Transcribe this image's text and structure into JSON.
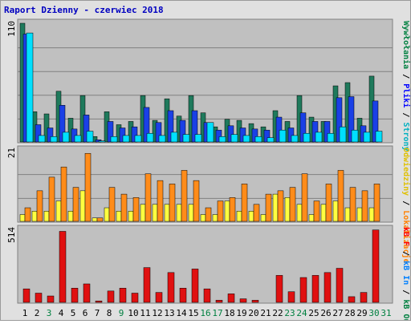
{
  "chart_data": [
    {
      "type": "bar",
      "title": "Raport Dzienny -  czerwiec 2018",
      "categories": [
        "1",
        "2",
        "3",
        "4",
        "5",
        "6",
        "7",
        "8",
        "9",
        "10",
        "11",
        "12",
        "13",
        "14",
        "15",
        "16",
        "17",
        "18",
        "19",
        "20",
        "21",
        "22",
        "23",
        "24",
        "25",
        "26",
        "27",
        "28",
        "29",
        "30",
        "31"
      ],
      "day_label_colors": [
        "#000000",
        "#000000",
        "#008040",
        "#000000",
        "#000000",
        "#000000",
        "#000000",
        "#000000",
        "#008040",
        "#000000",
        "#000000",
        "#000000",
        "#000000",
        "#000000",
        "#000000",
        "#008040",
        "#008040",
        "#000000",
        "#000000",
        "#000000",
        "#000000",
        "#000000",
        "#008040",
        "#008040",
        "#000000",
        "#000000",
        "#000000",
        "#000000",
        "#000000",
        "#008040",
        "#008040"
      ],
      "ymax_label": "110",
      "ylim": [
        0,
        110
      ],
      "grid": true,
      "legend_position": "right",
      "legend": [
        {
          "name": "Wywłołania",
          "color": "#008040"
        },
        {
          "name": "Pliki",
          "color": "#0000ff"
        },
        {
          "name": "Strony",
          "color": "#00b0c0"
        }
      ],
      "legend_separator": " / ",
      "series": [
        {
          "name": "Wywłołania",
          "color": "#1f7a5c",
          "values": [
            110,
            28,
            26,
            47,
            22,
            43,
            5,
            28,
            16,
            19,
            43,
            20,
            40,
            24,
            43,
            27,
            14,
            21,
            20,
            17,
            14,
            29,
            19,
            43,
            23,
            19,
            52,
            55,
            22,
            61,
            0
          ]
        },
        {
          "name": "Pliki",
          "color": "#1a40e6",
          "values": [
            100,
            16,
            13,
            34,
            12,
            25,
            2,
            19,
            13,
            14,
            32,
            18,
            29,
            20,
            29,
            18,
            11,
            15,
            13,
            12,
            11,
            23,
            13,
            27,
            19,
            19,
            41,
            42,
            15,
            38,
            0
          ]
        },
        {
          "name": "Strony",
          "color": "#00e0ff",
          "values": [
            101,
            6,
            5,
            9,
            6,
            10,
            1,
            5,
            6,
            6,
            8,
            6,
            9,
            7,
            7,
            18,
            5,
            7,
            6,
            5,
            4,
            11,
            6,
            8,
            9,
            8,
            14,
            11,
            9,
            10,
            0
          ]
        }
      ]
    },
    {
      "type": "bar",
      "ymax_label": "21",
      "ylim": [
        0,
        21
      ],
      "grid": true,
      "legend_position": "right",
      "legend": [
        {
          "name": "Odwiedziny",
          "color": "#e0c000"
        },
        {
          "name": "Lokalizacje",
          "color": "#ff8000"
        }
      ],
      "legend_separator": " / ",
      "series": [
        {
          "name": "Odwiedziny",
          "color": "#ffff40",
          "values": [
            2,
            3,
            3,
            6,
            3,
            9,
            1,
            4,
            3,
            3,
            5,
            5,
            5,
            5,
            5,
            2,
            2,
            6,
            3,
            3,
            2,
            8,
            7,
            5,
            2,
            5,
            6,
            4,
            4,
            4,
            0
          ]
        },
        {
          "name": "Lokalizacje",
          "color": "#ff8c1a",
          "values": [
            4,
            9,
            13,
            16,
            10,
            20,
            1,
            10,
            8,
            7,
            14,
            12,
            11,
            15,
            12,
            4,
            6,
            7,
            11,
            5,
            8,
            9,
            10,
            14,
            6,
            11,
            15,
            10,
            9,
            11,
            0
          ]
        }
      ]
    },
    {
      "type": "bar",
      "ymax_label": "514",
      "ylim": [
        0,
        514
      ],
      "grid": false,
      "legend_position": "right",
      "legend": [
        {
          "name": "kB F",
          "color": "#ff0000"
        },
        {
          "name": "kB In",
          "color": "#0080ff"
        },
        {
          "name": "kB Out",
          "color": "#008040"
        }
      ],
      "legend_separator": " / ",
      "series": [
        {
          "name": "kB F",
          "color": "#e01010",
          "values": [
            95,
            65,
            45,
            500,
            100,
            130,
            10,
            80,
            100,
            65,
            245,
            70,
            210,
            100,
            235,
            95,
            15,
            60,
            25,
            15,
            0,
            190,
            75,
            175,
            190,
            210,
            240,
            40,
            70,
            510,
            0
          ]
        }
      ]
    }
  ]
}
